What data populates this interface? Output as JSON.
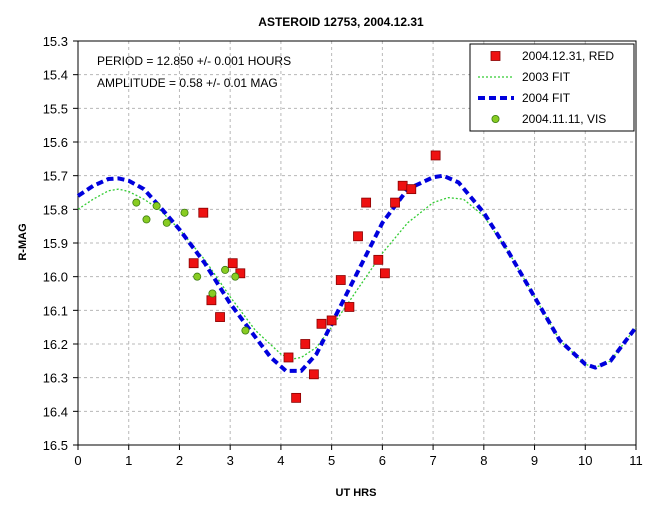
{
  "chart_data": {
    "type": "scatter",
    "title": "ASTEROID 12753, 2004.12.31",
    "xlabel": "UT HRS",
    "ylabel": "R-MAG",
    "xlim": [
      0,
      11
    ],
    "ylim": [
      15.3,
      16.5
    ],
    "y_inverted": true,
    "grid": true,
    "x_ticks": [
      "0",
      "1",
      "2",
      "3",
      "4",
      "5",
      "6",
      "7",
      "8",
      "9",
      "10",
      "11"
    ],
    "y_ticks": [
      "15.3",
      "15.4",
      "15.5",
      "15.6",
      "15.7",
      "15.8",
      "15.9",
      "16.0",
      "16.1",
      "16.2",
      "16.3",
      "16.4",
      "16.5"
    ],
    "annotations": [
      "PERIOD = 12.850 +/- 0.001 HOURS",
      "AMPLITUDE = 0.58 +/- 0.01 MAG"
    ],
    "legend_position": "top-right",
    "series": [
      {
        "name": "2004.12.31, RED",
        "kind": "scatter",
        "marker": "square",
        "color": "#ee1111",
        "points": [
          [
            2.47,
            15.81
          ],
          [
            2.28,
            15.96
          ],
          [
            2.63,
            16.07
          ],
          [
            2.8,
            16.12
          ],
          [
            3.05,
            15.96
          ],
          [
            3.2,
            15.99
          ],
          [
            4.15,
            16.24
          ],
          [
            4.3,
            16.36
          ],
          [
            4.48,
            16.2
          ],
          [
            4.65,
            16.29
          ],
          [
            4.8,
            16.14
          ],
          [
            5.0,
            16.13
          ],
          [
            5.18,
            16.01
          ],
          [
            5.35,
            16.09
          ],
          [
            5.52,
            15.88
          ],
          [
            5.68,
            15.78
          ],
          [
            5.92,
            15.95
          ],
          [
            6.05,
            15.99
          ],
          [
            6.25,
            15.78
          ],
          [
            6.4,
            15.73
          ],
          [
            6.57,
            15.74
          ],
          [
            7.05,
            15.64
          ]
        ]
      },
      {
        "name": "2003 FIT",
        "kind": "line",
        "style": "dotted",
        "color": "#33cc33",
        "points": [
          [
            0,
            15.8
          ],
          [
            0.3,
            15.77
          ],
          [
            0.6,
            15.745
          ],
          [
            0.8,
            15.74
          ],
          [
            1.0,
            15.747
          ],
          [
            1.3,
            15.77
          ],
          [
            1.6,
            15.8
          ],
          [
            2.0,
            15.86
          ],
          [
            2.5,
            15.95
          ],
          [
            3.0,
            16.06
          ],
          [
            3.5,
            16.16
          ],
          [
            4.0,
            16.23
          ],
          [
            4.2,
            16.245
          ],
          [
            4.4,
            16.24
          ],
          [
            4.7,
            16.21
          ],
          [
            5.0,
            16.15
          ],
          [
            5.5,
            16.04
          ],
          [
            6.0,
            15.93
          ],
          [
            6.5,
            15.84
          ],
          [
            7.0,
            15.78
          ],
          [
            7.3,
            15.765
          ],
          [
            7.6,
            15.77
          ],
          [
            8.0,
            15.82
          ],
          [
            8.5,
            15.93
          ],
          [
            9.0,
            16.06
          ],
          [
            9.5,
            16.19
          ],
          [
            10.0,
            16.26
          ],
          [
            10.2,
            16.27
          ],
          [
            10.5,
            16.25
          ],
          [
            11.0,
            16.15
          ]
        ]
      },
      {
        "name": "2004 FIT",
        "kind": "line",
        "style": "dashed",
        "color": "#0000dd",
        "points": [
          [
            0,
            15.76
          ],
          [
            0.3,
            15.73
          ],
          [
            0.6,
            15.71
          ],
          [
            0.8,
            15.708
          ],
          [
            1.0,
            15.715
          ],
          [
            1.3,
            15.74
          ],
          [
            1.6,
            15.79
          ],
          [
            2.0,
            15.86
          ],
          [
            2.5,
            15.96
          ],
          [
            3.0,
            16.08
          ],
          [
            3.5,
            16.18
          ],
          [
            3.8,
            16.24
          ],
          [
            4.1,
            16.28
          ],
          [
            4.4,
            16.28
          ],
          [
            4.7,
            16.23
          ],
          [
            5.0,
            16.14
          ],
          [
            5.5,
            15.99
          ],
          [
            6.0,
            15.84
          ],
          [
            6.5,
            15.74
          ],
          [
            7.0,
            15.705
          ],
          [
            7.2,
            15.7
          ],
          [
            7.5,
            15.72
          ],
          [
            8.0,
            15.81
          ],
          [
            8.5,
            15.93
          ],
          [
            9.0,
            16.06
          ],
          [
            9.5,
            16.19
          ],
          [
            10.0,
            16.26
          ],
          [
            10.2,
            16.27
          ],
          [
            10.5,
            16.25
          ],
          [
            11.0,
            16.15
          ]
        ]
      },
      {
        "name": "2004.11.11, VIS",
        "kind": "scatter",
        "marker": "circle",
        "color": "#88cc22",
        "points": [
          [
            1.15,
            15.78
          ],
          [
            1.35,
            15.83
          ],
          [
            1.55,
            15.79
          ],
          [
            1.75,
            15.84
          ],
          [
            2.1,
            15.81
          ],
          [
            2.35,
            16.0
          ],
          [
            2.65,
            16.05
          ],
          [
            2.9,
            15.98
          ],
          [
            3.1,
            16.0
          ],
          [
            3.3,
            16.16
          ]
        ]
      }
    ]
  }
}
